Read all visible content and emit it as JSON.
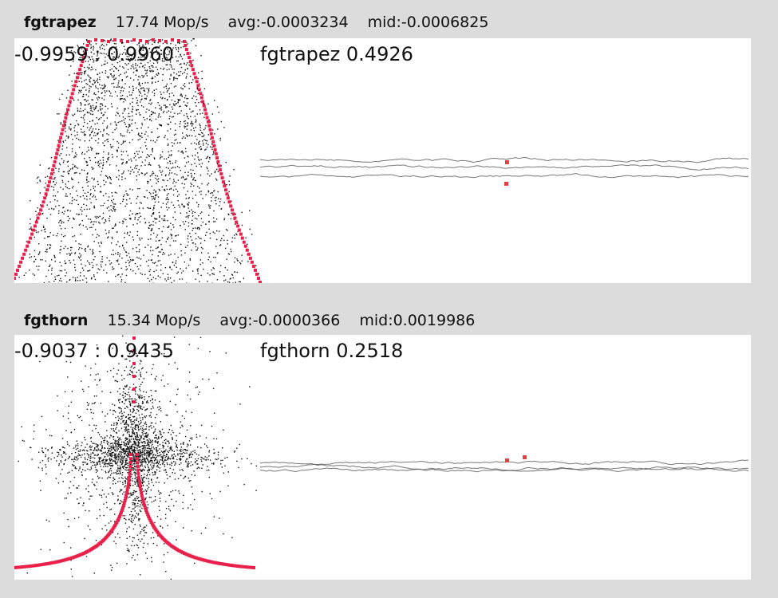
{
  "colors": {
    "background": "#dcdcdc",
    "plot_background": "#ffffff",
    "scatter": "#111111",
    "curve": "#e8204a",
    "trace": "#555555",
    "marker": "#e84040"
  },
  "chart_data": [
    {
      "type": "scatter",
      "name": "fgtrapez",
      "speed": "17.74 Mop/s",
      "avg": "avg:-0.0003234",
      "mid": "mid:-0.0006825",
      "range_text": "-0.9959 : 0.9960",
      "result_text": "fgtrapez 0.4926",
      "x_range": [
        -0.9959,
        0.996
      ],
      "distribution": "trapezoid",
      "result": 0.4926
    },
    {
      "type": "scatter",
      "name": "fgthorn",
      "speed": "15.34 Mop/s",
      "avg": "avg:-0.0000366",
      "mid": "mid:0.0019986",
      "range_text": "-0.9037 : 0.9435",
      "result_text": "fgthorn 0.2518",
      "x_range": [
        -0.9037,
        0.9435
      ],
      "distribution": "thorn",
      "result": 0.2518
    }
  ]
}
